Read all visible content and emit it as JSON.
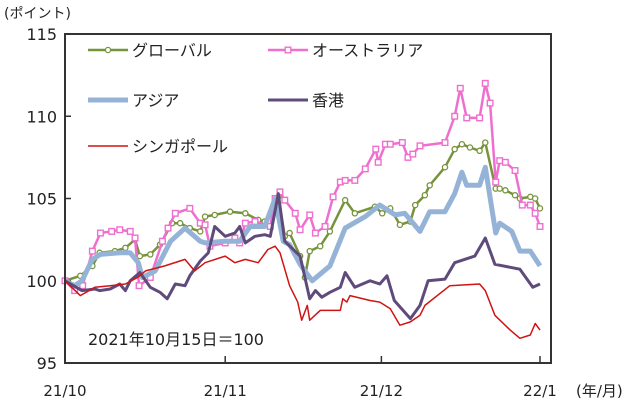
{
  "chart_data": {
    "type": "line",
    "ylabel": "(ポイント)",
    "xlabel": "(年/月)",
    "annotation": "2021年10月15日＝100",
    "ylim": [
      95,
      115
    ],
    "yticks": [
      95,
      100,
      105,
      110,
      115
    ],
    "xlim": [
      0,
      59
    ],
    "xticks": [
      {
        "label": "21/10",
        "at": 0
      },
      {
        "label": "21/11",
        "at": 19.9
      },
      {
        "label": "21/12",
        "at": 39.3
      },
      {
        "label": "22/1",
        "at": 59
      }
    ],
    "grid": false,
    "legend_placement": "top-left, inside plot",
    "series": [
      {
        "name": "グローバル",
        "color": "#77933c",
        "marker": "circle",
        "width": 2.5,
        "points": [
          [
            0,
            100
          ],
          [
            1.9,
            100.3
          ],
          [
            3.4,
            100.9
          ],
          [
            4.3,
            101.7
          ],
          [
            6.2,
            101.8
          ],
          [
            7.5,
            102.0
          ],
          [
            8.7,
            102.5
          ],
          [
            9.3,
            101.5
          ],
          [
            10.6,
            101.6
          ],
          [
            11.8,
            102.2
          ],
          [
            13.3,
            103.5
          ],
          [
            14.3,
            103.5
          ],
          [
            15.5,
            103.2
          ],
          [
            16.8,
            103.0
          ],
          [
            17.4,
            103.9
          ],
          [
            18.6,
            104.0
          ],
          [
            20.5,
            104.2
          ],
          [
            22.4,
            104.1
          ],
          [
            24.0,
            103.7
          ],
          [
            24.8,
            103.6
          ],
          [
            26.1,
            104.3
          ],
          [
            26.5,
            105.1
          ],
          [
            27.3,
            102.7
          ],
          [
            27.9,
            102.9
          ],
          [
            29.2,
            101.5
          ],
          [
            29.8,
            100.2
          ],
          [
            30.4,
            101.8
          ],
          [
            31.7,
            102.1
          ],
          [
            32.9,
            103.0
          ],
          [
            34.8,
            104.9
          ],
          [
            36.0,
            104.1
          ],
          [
            38.5,
            104.5
          ],
          [
            39.4,
            104.1
          ],
          [
            40.4,
            104.4
          ],
          [
            41.6,
            103.4
          ],
          [
            42.9,
            103.6
          ],
          [
            43.5,
            104.6
          ],
          [
            44.7,
            105.2
          ],
          [
            45.3,
            105.8
          ],
          [
            47.2,
            106.9
          ],
          [
            48.4,
            108.0
          ],
          [
            49.3,
            108.3
          ],
          [
            50.3,
            108.1
          ],
          [
            51.5,
            107.9
          ],
          [
            52.2,
            108.4
          ],
          [
            53.5,
            105.6
          ],
          [
            54.0,
            105.6
          ],
          [
            54.7,
            105.5
          ],
          [
            55.9,
            105.2
          ],
          [
            56.5,
            105.0
          ],
          [
            57.8,
            105.1
          ],
          [
            58.4,
            105.0
          ],
          [
            59,
            104.4
          ]
        ]
      },
      {
        "name": "オーストラリア",
        "color": "#ef6fcf",
        "marker": "square",
        "width": 2.5,
        "points": [
          [
            0,
            100
          ],
          [
            1.2,
            99.4
          ],
          [
            2.2,
            99.7
          ],
          [
            3.4,
            101.8
          ],
          [
            4.4,
            102.9
          ],
          [
            5.8,
            103.0
          ],
          [
            6.8,
            103.1
          ],
          [
            8.1,
            103.0
          ],
          [
            8.7,
            102.6
          ],
          [
            9.2,
            99.7
          ],
          [
            10.6,
            100.2
          ],
          [
            12.1,
            102.4
          ],
          [
            12.8,
            103.2
          ],
          [
            13.7,
            104.1
          ],
          [
            15.5,
            104.4
          ],
          [
            16.8,
            103.5
          ],
          [
            17.4,
            103.4
          ],
          [
            18.0,
            102.1
          ],
          [
            19.9,
            102.3
          ],
          [
            21.1,
            102.6
          ],
          [
            21.7,
            102.3
          ],
          [
            22.4,
            103.5
          ],
          [
            23.6,
            103.6
          ],
          [
            25.5,
            103.3
          ],
          [
            26.1,
            105.0
          ],
          [
            26.7,
            105.4
          ],
          [
            27.3,
            104.9
          ],
          [
            28.6,
            104.1
          ],
          [
            29.2,
            103.1
          ],
          [
            30.4,
            104.0
          ],
          [
            31.1,
            102.9
          ],
          [
            32.3,
            103.3
          ],
          [
            33.3,
            105.1
          ],
          [
            34.2,
            106.0
          ],
          [
            34.8,
            106.1
          ],
          [
            36.0,
            106.1
          ],
          [
            37.3,
            106.8
          ],
          [
            38.6,
            108.0
          ],
          [
            38.9,
            107.2
          ],
          [
            39.8,
            108.3
          ],
          [
            40.4,
            108.3
          ],
          [
            41.9,
            108.4
          ],
          [
            42.6,
            107.5
          ],
          [
            43.2,
            107.7
          ],
          [
            44.1,
            108.2
          ],
          [
            47.2,
            108.4
          ],
          [
            48.4,
            110.0
          ],
          [
            49.1,
            111.7
          ],
          [
            49.9,
            109.9
          ],
          [
            51.5,
            109.9
          ],
          [
            52.2,
            112.0
          ],
          [
            52.8,
            110.8
          ],
          [
            53.5,
            106.0
          ],
          [
            54.0,
            107.3
          ],
          [
            54.7,
            107.2
          ],
          [
            55.9,
            106.7
          ],
          [
            56.8,
            104.6
          ],
          [
            57.8,
            104.6
          ],
          [
            58.4,
            104.1
          ],
          [
            59,
            103.3
          ]
        ]
      },
      {
        "name": "アジア",
        "color": "#95b3d7",
        "marker": "none",
        "width": 5,
        "points": [
          [
            0,
            100
          ],
          [
            1.2,
            99.7
          ],
          [
            2.1,
            100
          ],
          [
            3.4,
            101.3
          ],
          [
            4.4,
            101.6
          ],
          [
            6.8,
            101.7
          ],
          [
            8.1,
            101.7
          ],
          [
            9.1,
            101.1
          ],
          [
            9.6,
            100.2
          ],
          [
            11.2,
            100.6
          ],
          [
            13.1,
            102.4
          ],
          [
            14.9,
            103.2
          ],
          [
            16.8,
            102.4
          ],
          [
            17.4,
            102.3
          ],
          [
            19.9,
            102.4
          ],
          [
            21.7,
            102.4
          ],
          [
            23.0,
            103.3
          ],
          [
            24.8,
            103.3
          ],
          [
            26.1,
            105.0
          ],
          [
            27.1,
            102.4
          ],
          [
            27.9,
            102.2
          ],
          [
            29.2,
            101.0
          ],
          [
            30.7,
            100.0
          ],
          [
            32.9,
            100.9
          ],
          [
            34.8,
            103.2
          ],
          [
            37.3,
            103.9
          ],
          [
            39.1,
            104.6
          ],
          [
            41.0,
            104.0
          ],
          [
            42.2,
            104.1
          ],
          [
            44.1,
            103.0
          ],
          [
            45.3,
            104.2
          ],
          [
            47.2,
            104.2
          ],
          [
            48.4,
            105.3
          ],
          [
            49.3,
            106.6
          ],
          [
            49.9,
            105.8
          ],
          [
            51.5,
            105.8
          ],
          [
            52.2,
            106.9
          ],
          [
            53.5,
            102.9
          ],
          [
            54.0,
            103.5
          ],
          [
            55.5,
            103.0
          ],
          [
            56.5,
            101.8
          ],
          [
            57.8,
            101.8
          ],
          [
            59,
            100.9
          ]
        ]
      },
      {
        "name": "香港",
        "color": "#5f4b7b",
        "marker": "none",
        "width": 3,
        "points": [
          [
            0,
            100
          ],
          [
            2.1,
            99.4
          ],
          [
            3.7,
            99.5
          ],
          [
            4.3,
            99.4
          ],
          [
            5.6,
            99.5
          ],
          [
            6.8,
            99.8
          ],
          [
            7.5,
            99.4
          ],
          [
            8.1,
            100
          ],
          [
            9.3,
            100.5
          ],
          [
            10.6,
            99.6
          ],
          [
            11.8,
            99.3
          ],
          [
            12.7,
            98.9
          ],
          [
            13.7,
            99.8
          ],
          [
            14.9,
            99.7
          ],
          [
            15.5,
            100.3
          ],
          [
            16.8,
            101.2
          ],
          [
            17.8,
            101.7
          ],
          [
            18.6,
            103.3
          ],
          [
            19.9,
            102.7
          ],
          [
            21.1,
            102.9
          ],
          [
            21.7,
            103.3
          ],
          [
            22.4,
            102.3
          ],
          [
            23.6,
            102.7
          ],
          [
            24.8,
            102.8
          ],
          [
            25.5,
            102.7
          ],
          [
            26.5,
            105.3
          ],
          [
            27.3,
            102.4
          ],
          [
            29.2,
            101.5
          ],
          [
            30.4,
            98.9
          ],
          [
            31.1,
            99.4
          ],
          [
            31.9,
            99.0
          ],
          [
            32.9,
            99.3
          ],
          [
            34.2,
            99.6
          ],
          [
            34.8,
            100.5
          ],
          [
            36.0,
            99.6
          ],
          [
            37.9,
            100.0
          ],
          [
            39.1,
            99.8
          ],
          [
            40.0,
            100.3
          ],
          [
            40.9,
            98.8
          ],
          [
            42.9,
            97.7
          ],
          [
            44.1,
            98.5
          ],
          [
            45.1,
            100.0
          ],
          [
            47.2,
            100.1
          ],
          [
            48.4,
            101.1
          ],
          [
            50.9,
            101.5
          ],
          [
            52.2,
            102.6
          ],
          [
            53.4,
            101.0
          ],
          [
            56.5,
            100.7
          ],
          [
            58.1,
            99.6
          ],
          [
            59,
            99.8
          ]
        ]
      },
      {
        "name": "シンガポール",
        "color": "#d01414",
        "marker": "none",
        "width": 1.5,
        "points": [
          [
            0,
            100
          ],
          [
            1.9,
            99.1
          ],
          [
            3.7,
            99.6
          ],
          [
            5.6,
            99.7
          ],
          [
            7.5,
            99.8
          ],
          [
            9.0,
            100.2
          ],
          [
            10.0,
            100.6
          ],
          [
            12.4,
            100.9
          ],
          [
            14.9,
            101.3
          ],
          [
            16.1,
            100.6
          ],
          [
            17.4,
            101.1
          ],
          [
            19.9,
            101.5
          ],
          [
            21.1,
            101.1
          ],
          [
            22.4,
            101.3
          ],
          [
            24.0,
            101.1
          ],
          [
            25.2,
            101.9
          ],
          [
            26.1,
            102.1
          ],
          [
            26.7,
            101.7
          ],
          [
            27.9,
            99.7
          ],
          [
            28.9,
            98.7
          ],
          [
            29.4,
            97.6
          ],
          [
            30.1,
            98.5
          ],
          [
            30.4,
            97.6
          ],
          [
            31.7,
            98.2
          ],
          [
            34.2,
            98.2
          ],
          [
            34.5,
            98.9
          ],
          [
            35.0,
            98.7
          ],
          [
            35.4,
            99.1
          ],
          [
            37.9,
            98.8
          ],
          [
            39.1,
            98.7
          ],
          [
            40.4,
            98.3
          ],
          [
            41.6,
            97.3
          ],
          [
            42.9,
            97.5
          ],
          [
            44.1,
            97.9
          ],
          [
            44.7,
            98.5
          ],
          [
            47.8,
            99.7
          ],
          [
            51.5,
            99.8
          ],
          [
            52.2,
            99.4
          ],
          [
            53.4,
            97.9
          ],
          [
            55.3,
            97.0
          ],
          [
            56.5,
            96.5
          ],
          [
            57.8,
            96.7
          ],
          [
            58.4,
            97.4
          ],
          [
            59,
            97.0
          ]
        ]
      }
    ]
  }
}
